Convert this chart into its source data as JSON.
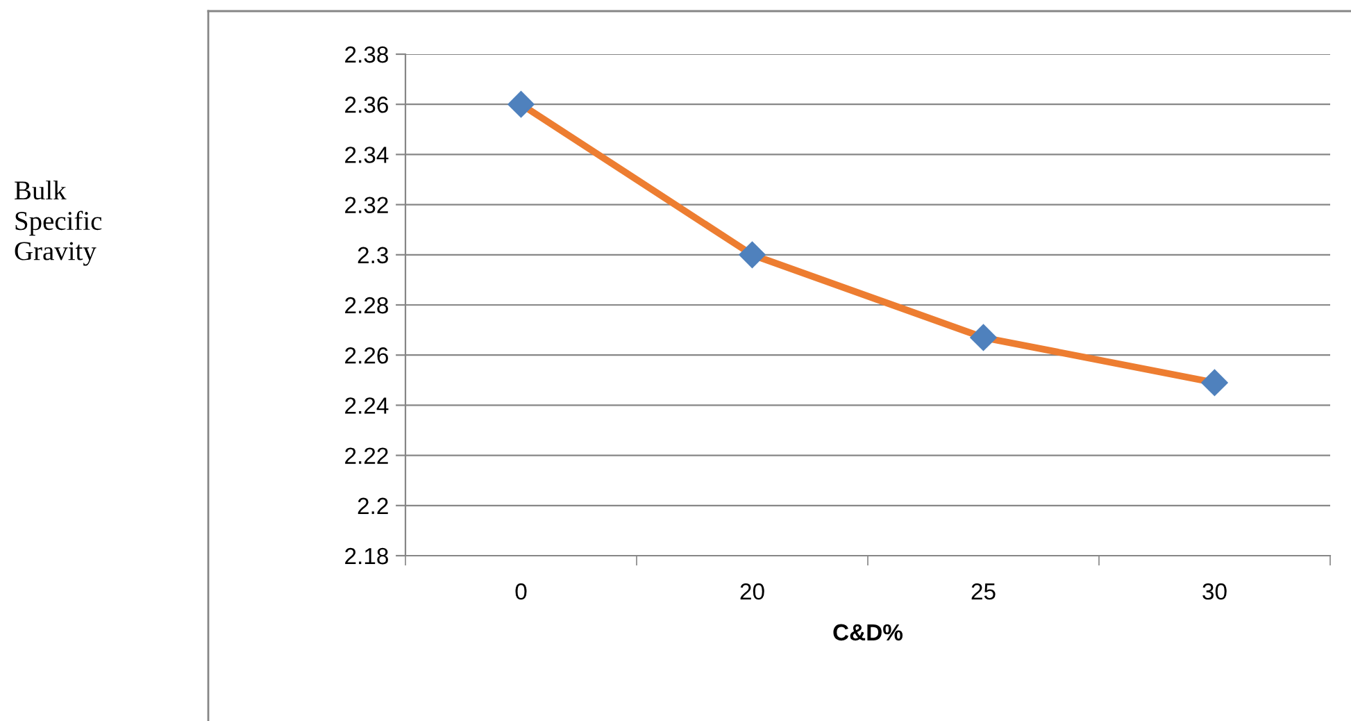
{
  "chart_data": {
    "type": "line",
    "xlabel": "C&D%",
    "annotations": [
      "Bulk\nSpecific\nGravity"
    ],
    "categories": [
      "0",
      "20",
      "25",
      "30"
    ],
    "series": [
      {
        "color": "#ed7d31",
        "colors": [
          "#4f81bd",
          "#4f81bd",
          "#4f81bd",
          "#4f81bd"
        ],
        "values": [
          2.36,
          2.3,
          2.267,
          2.249
        ]
      }
    ],
    "ylim": [
      2.18,
      2.38
    ],
    "yticks": [
      2.18,
      2.2,
      2.22,
      2.24,
      2.26,
      2.28,
      2.3,
      2.32,
      2.34,
      2.36,
      2.38
    ],
    "grid": "y",
    "marker": "diamond",
    "line_style": "solid",
    "legend": false
  }
}
